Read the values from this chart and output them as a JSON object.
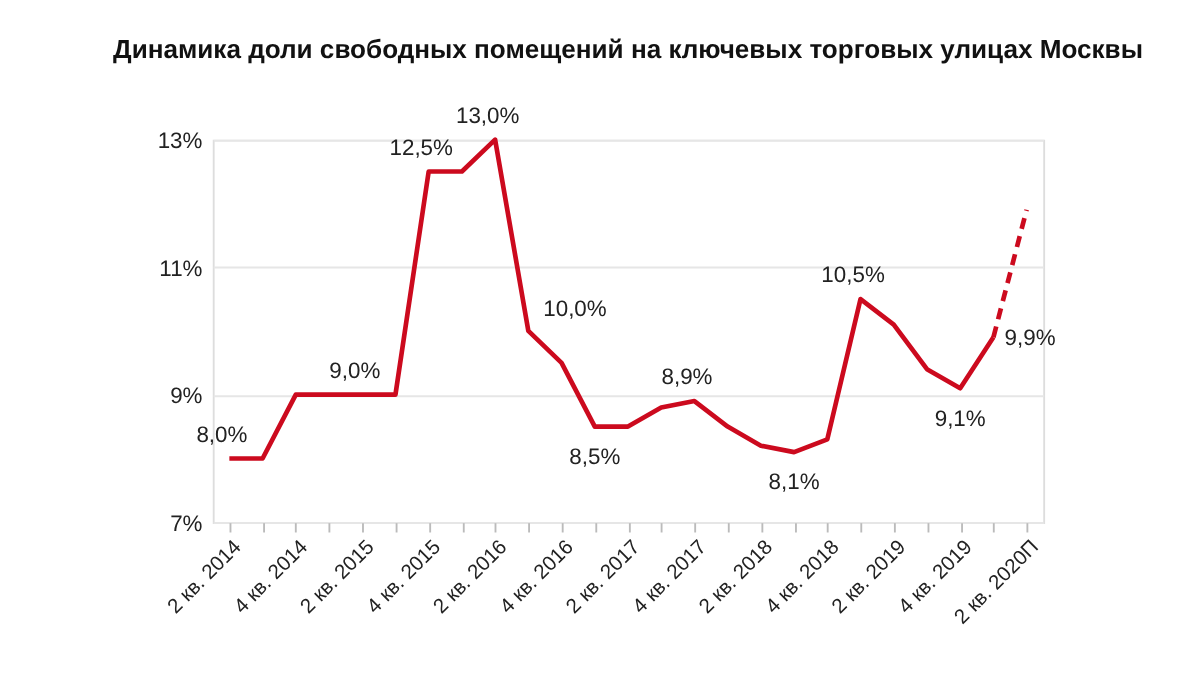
{
  "chart_data": {
    "type": "line",
    "title": "Динамика доли свободных помещений на ключевых торговых улицах Москвы",
    "categories": [
      "2 кв. 2014",
      null,
      "4 кв. 2014",
      null,
      "2 кв. 2015",
      null,
      "4 кв. 2015",
      null,
      "2 кв. 2016",
      null,
      "4 кв. 2016",
      null,
      "2 кв. 2017",
      null,
      "4 кв. 2017",
      null,
      "2 кв. 2018",
      null,
      "4 кв. 2018",
      null,
      "2 кв. 2019",
      null,
      "4 кв. 2019",
      null,
      "2 кв. 2020П"
    ],
    "series": [
      {
        "color": "#cc0a1e",
        "line_style": "solid",
        "values": [
          8.0,
          8.0,
          9.0,
          9.0,
          9.0,
          9.0,
          12.5,
          12.5,
          13.0,
          10.0,
          9.5,
          8.5,
          8.5,
          8.8,
          8.9,
          8.5,
          8.2,
          8.1,
          8.3,
          10.5,
          10.1,
          9.4,
          9.1,
          9.9,
          null
        ],
        "value_labels": [
          "8,0%",
          null,
          null,
          null,
          "9,0%",
          null,
          "12,5%",
          null,
          "13,0%",
          "10,0%",
          null,
          "8,5%",
          null,
          null,
          "8,9%",
          null,
          null,
          "8,1%",
          null,
          "10,5%",
          null,
          null,
          "9,1%",
          "9,9%",
          null
        ]
      },
      {
        "color": "#cc0a1e",
        "line_style": "dashed",
        "values": [
          null,
          null,
          null,
          null,
          null,
          null,
          null,
          null,
          null,
          null,
          null,
          null,
          null,
          null,
          null,
          null,
          null,
          null,
          null,
          null,
          null,
          null,
          null,
          9.9,
          11.9
        ]
      }
    ],
    "ylim": [
      7,
      13
    ],
    "yticks": [
      {
        "value": 7,
        "label": "7%"
      },
      {
        "value": 9,
        "label": "9%"
      },
      {
        "value": 11,
        "label": "11%"
      },
      {
        "value": 13,
        "label": "13%"
      }
    ],
    "grid": "y",
    "marker": "none"
  }
}
